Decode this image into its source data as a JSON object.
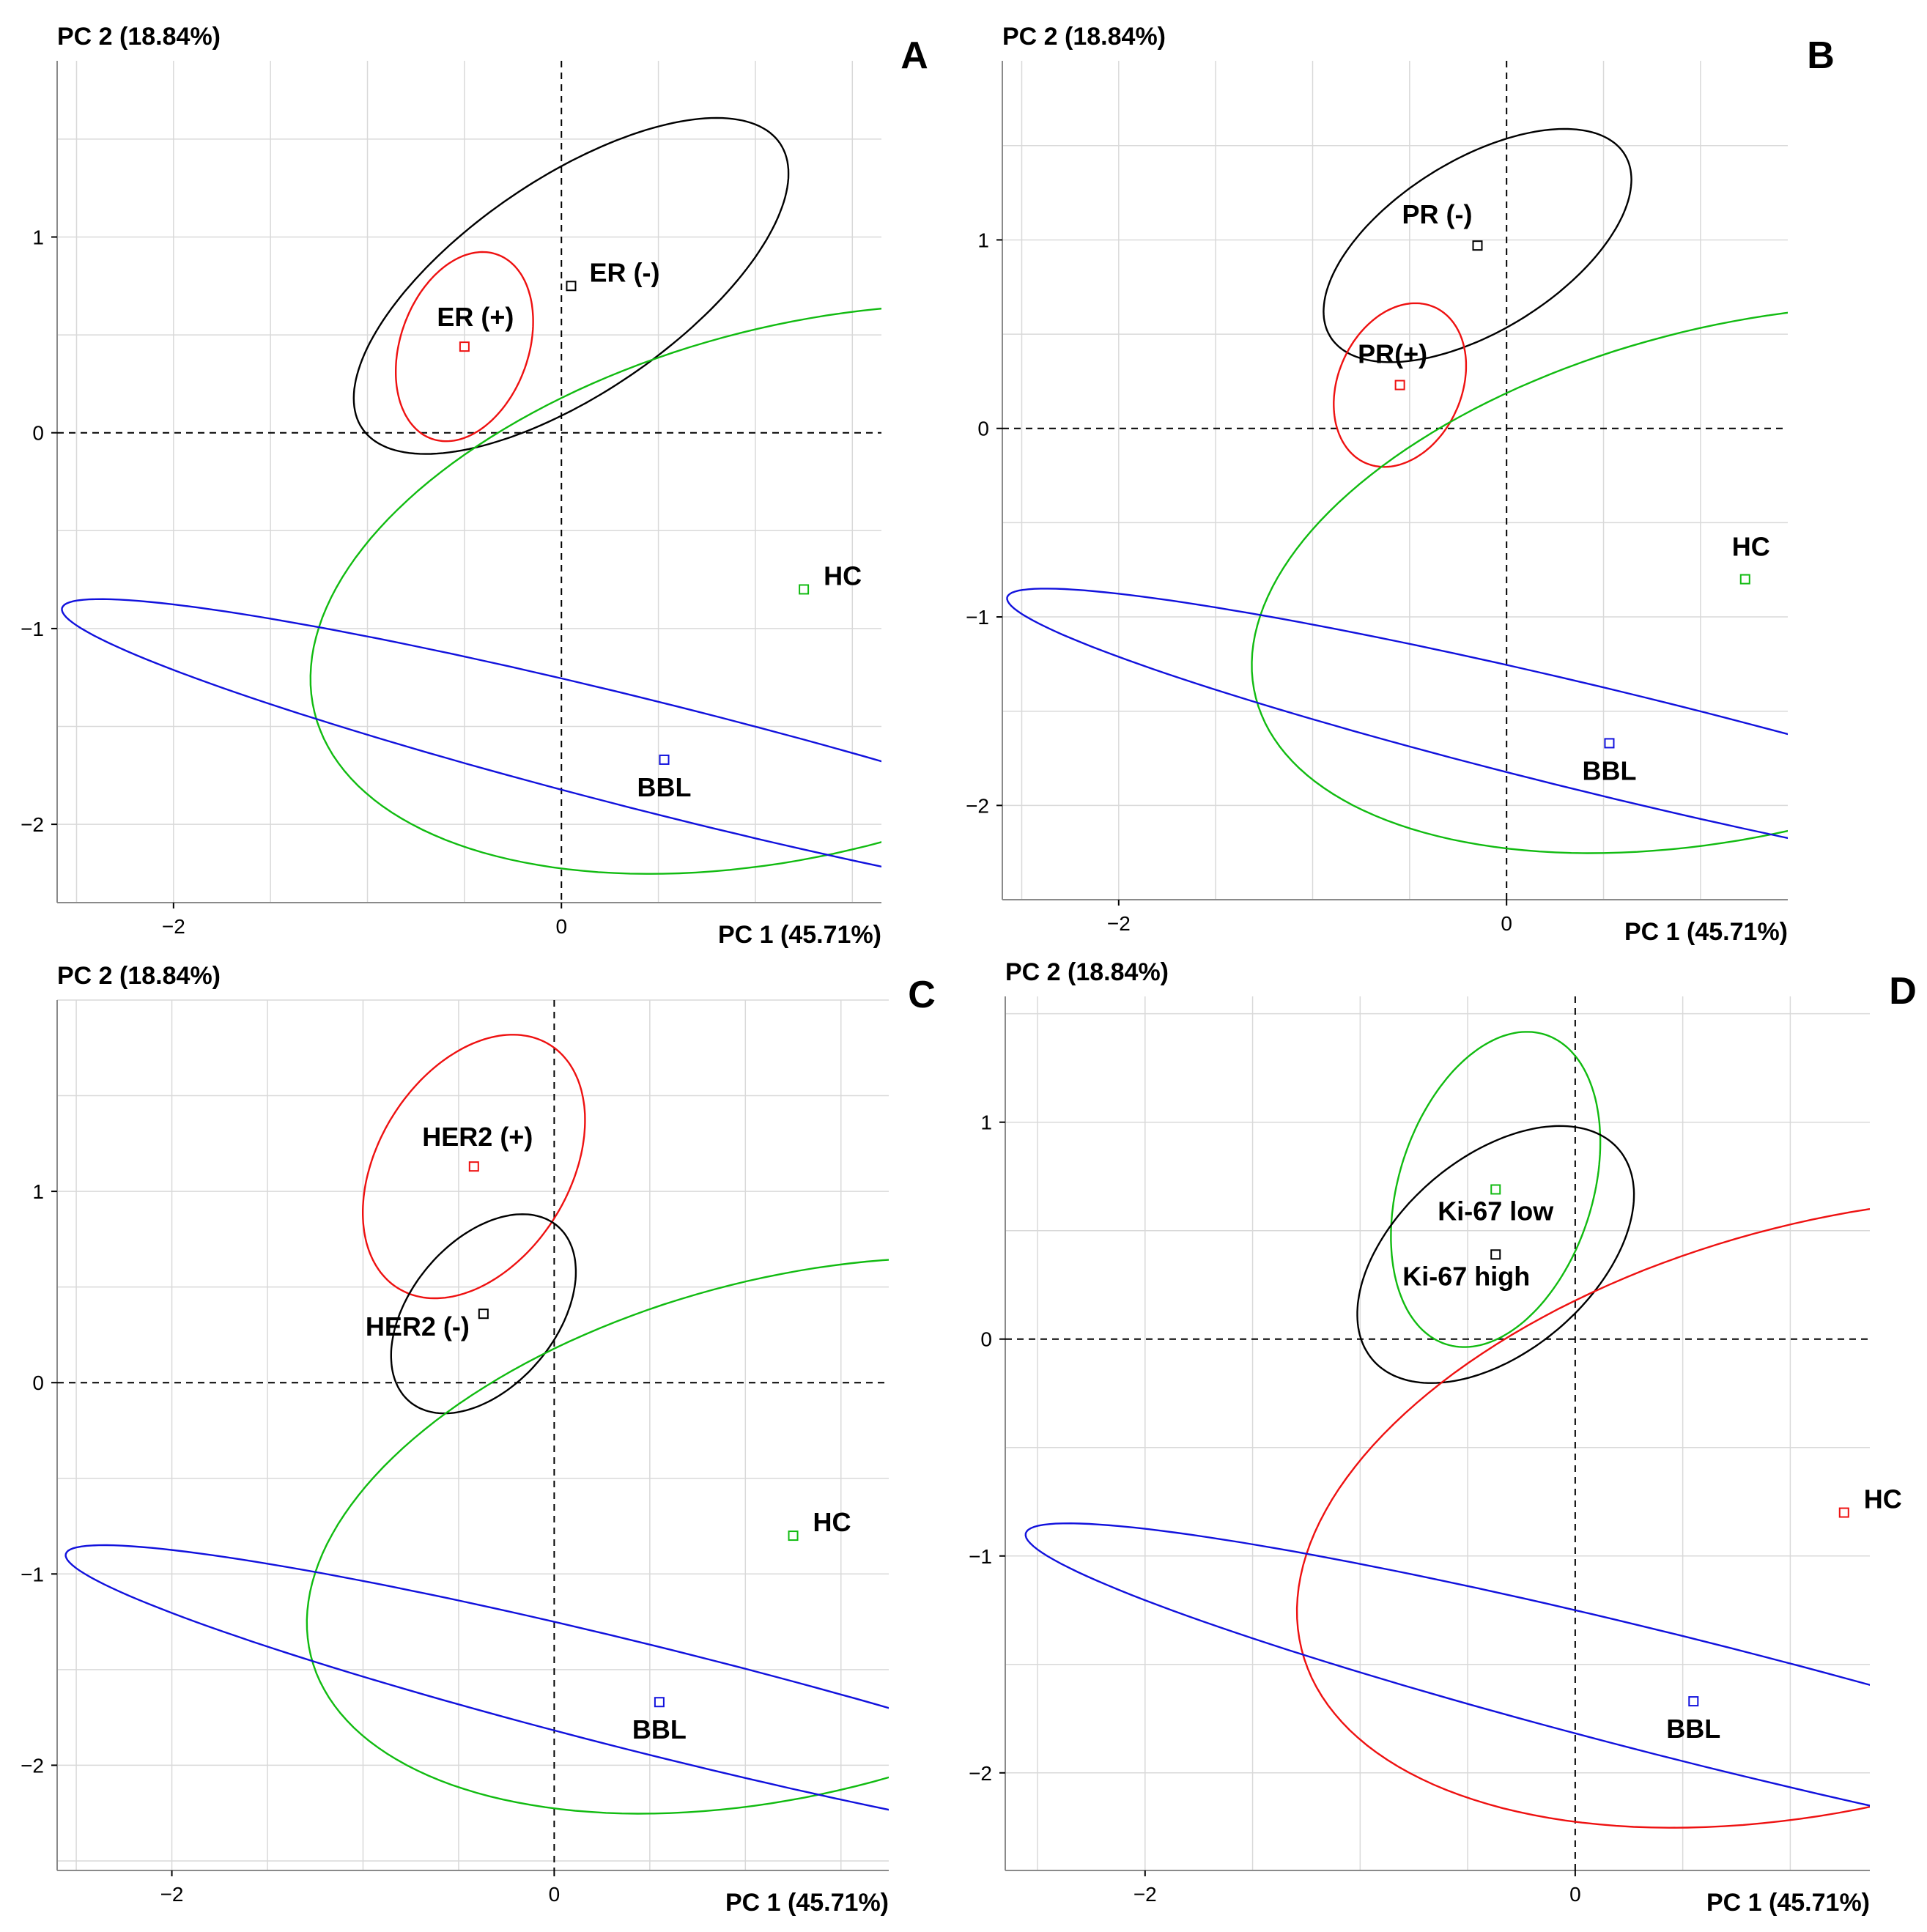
{
  "chart_data": [
    {
      "type": "scatter",
      "panel": "A",
      "xlabel": "PC 1 (45.71%)",
      "ylabel": "PC 2 (18.84%)",
      "xlim": [
        -2.6,
        1.65
      ],
      "ylim": [
        -2.4,
        1.9
      ],
      "xticks": [
        -2,
        0
      ],
      "yticks": [
        -2,
        -1,
        0,
        1
      ],
      "xtick_labels": [
        "−2",
        "0"
      ],
      "ytick_labels": [
        "−2",
        "−1",
        "0",
        "1"
      ],
      "points": [
        {
          "label": "ER (-)",
          "x": 0.05,
          "y": 0.75,
          "color": "#000000"
        },
        {
          "label": "ER (+)",
          "x": -0.5,
          "y": 0.44,
          "color": "#ee1111"
        },
        {
          "label": "HC",
          "x": 1.25,
          "y": -0.8,
          "color": "#11bb11"
        },
        {
          "label": "BBL",
          "x": 0.53,
          "y": -1.67,
          "color": "#1111dd"
        }
      ],
      "ellipses": [
        {
          "group": "ER (-)",
          "color": "#000000",
          "cx": 0.05,
          "cy": 0.75,
          "rx": 1.3,
          "ry": 0.55,
          "angle_deg": 34
        },
        {
          "group": "ER (+)",
          "color": "#ee1111",
          "cx": -0.5,
          "cy": 0.44,
          "rx": 0.5,
          "ry": 0.33,
          "angle_deg": 70
        },
        {
          "group": "HC",
          "color": "#11bb11",
          "cx": 1.25,
          "cy": -0.8,
          "rx": 2.6,
          "ry": 1.35,
          "angle_deg": 14
        },
        {
          "group": "BBL",
          "color": "#1111dd",
          "cx": 0.53,
          "cy": -1.67,
          "rx": 3.2,
          "ry": 0.28,
          "angle_deg": -14
        }
      ]
    },
    {
      "type": "scatter",
      "panel": "B",
      "xlabel": "PC 1 (45.71%)",
      "ylabel": "PC 2 (18.84%)",
      "xlim": [
        -2.6,
        1.45
      ],
      "ylim": [
        -2.5,
        1.95
      ],
      "xticks": [
        -2,
        0
      ],
      "yticks": [
        -2,
        -1,
        0,
        1
      ],
      "xtick_labels": [
        "−2",
        "0"
      ],
      "ytick_labels": [
        "−2",
        "−1",
        "0",
        "1"
      ],
      "points": [
        {
          "label": "PR (-)",
          "x": -0.15,
          "y": 0.97,
          "color": "#000000"
        },
        {
          "label": "PR(+)",
          "x": -0.55,
          "y": 0.23,
          "color": "#ee1111"
        },
        {
          "label": "HC",
          "x": 1.23,
          "y": -0.8,
          "color": "#11bb11"
        },
        {
          "label": "BBL",
          "x": 0.53,
          "y": -1.67,
          "color": "#1111dd"
        }
      ],
      "ellipses": [
        {
          "group": "PR (-)",
          "color": "#000000",
          "cx": -0.15,
          "cy": 0.97,
          "rx": 0.9,
          "ry": 0.45,
          "angle_deg": 33
        },
        {
          "group": "PR(+)",
          "color": "#ee1111",
          "cx": -0.55,
          "cy": 0.23,
          "rx": 0.45,
          "ry": 0.32,
          "angle_deg": 68
        },
        {
          "group": "HC",
          "color": "#11bb11",
          "cx": 1.23,
          "cy": -0.8,
          "rx": 2.6,
          "ry": 1.35,
          "angle_deg": 14
        },
        {
          "group": "BBL",
          "color": "#1111dd",
          "cx": 0.53,
          "cy": -1.67,
          "rx": 3.2,
          "ry": 0.28,
          "angle_deg": -14
        }
      ]
    },
    {
      "type": "scatter",
      "panel": "C",
      "xlabel": "PC 1 (45.71%)",
      "ylabel": "PC 2 (18.84%)",
      "xlim": [
        -2.6,
        1.75
      ],
      "ylim": [
        -2.55,
        2.0
      ],
      "xticks": [
        -2,
        0
      ],
      "yticks": [
        -2,
        -1,
        0,
        1
      ],
      "xtick_labels": [
        "−2",
        "0"
      ],
      "ytick_labels": [
        "−2",
        "−1",
        "0",
        "1"
      ],
      "points": [
        {
          "label": "HER2 (+)",
          "x": -0.42,
          "y": 1.13,
          "color": "#ee1111"
        },
        {
          "label": "HER2 (-)",
          "x": -0.37,
          "y": 0.36,
          "color": "#000000"
        },
        {
          "label": "HC",
          "x": 1.25,
          "y": -0.8,
          "color": "#11bb11"
        },
        {
          "label": "BBL",
          "x": 0.55,
          "y": -1.67,
          "color": "#1111dd"
        }
      ],
      "ellipses": [
        {
          "group": "HER2 (+)",
          "color": "#ee1111",
          "cx": -0.42,
          "cy": 1.13,
          "rx": 0.75,
          "ry": 0.5,
          "angle_deg": 58
        },
        {
          "group": "HER2 (-)",
          "color": "#000000",
          "cx": -0.37,
          "cy": 0.36,
          "rx": 0.6,
          "ry": 0.38,
          "angle_deg": 50
        },
        {
          "group": "HC",
          "color": "#11bb11",
          "cx": 1.25,
          "cy": -0.8,
          "rx": 2.6,
          "ry": 1.35,
          "angle_deg": 14
        },
        {
          "group": "BBL",
          "color": "#1111dd",
          "cx": 0.55,
          "cy": -1.67,
          "rx": 3.2,
          "ry": 0.28,
          "angle_deg": -14
        }
      ]
    },
    {
      "type": "scatter",
      "panel": "D",
      "xlabel": "PC 1 (45.71%)",
      "ylabel": "PC 2 (18.84%)",
      "xlim": [
        -2.65,
        1.37
      ],
      "ylim": [
        -2.45,
        1.58
      ],
      "xticks": [
        -2,
        0
      ],
      "yticks": [
        -2,
        -1,
        0,
        1
      ],
      "xtick_labels": [
        "−2",
        "0"
      ],
      "ytick_labels": [
        "−2",
        "−1",
        "0",
        "1"
      ],
      "points": [
        {
          "label": "Ki-67 low",
          "x": -0.37,
          "y": 0.69,
          "color": "#11bb11"
        },
        {
          "label": "Ki-67 high",
          "x": -0.37,
          "y": 0.39,
          "color": "#000000"
        },
        {
          "label": "HC",
          "x": 1.25,
          "y": -0.8,
          "color": "#ee1111"
        },
        {
          "label": "BBL",
          "x": 0.55,
          "y": -1.67,
          "color": "#1111dd"
        }
      ],
      "ellipses": [
        {
          "group": "Ki-67 low",
          "color": "#11bb11",
          "cx": -0.37,
          "cy": 0.69,
          "rx": 0.75,
          "ry": 0.45,
          "angle_deg": 72
        },
        {
          "group": "Ki-67 high",
          "color": "#000000",
          "cx": -0.37,
          "cy": 0.39,
          "rx": 0.75,
          "ry": 0.45,
          "angle_deg": 40
        },
        {
          "group": "HC",
          "color": "#ee1111",
          "cx": 1.25,
          "cy": -0.8,
          "rx": 2.6,
          "ry": 1.35,
          "angle_deg": 14
        },
        {
          "group": "BBL",
          "color": "#1111dd",
          "cx": 0.55,
          "cy": -1.67,
          "rx": 3.2,
          "ry": 0.28,
          "angle_deg": -14
        }
      ]
    }
  ]
}
